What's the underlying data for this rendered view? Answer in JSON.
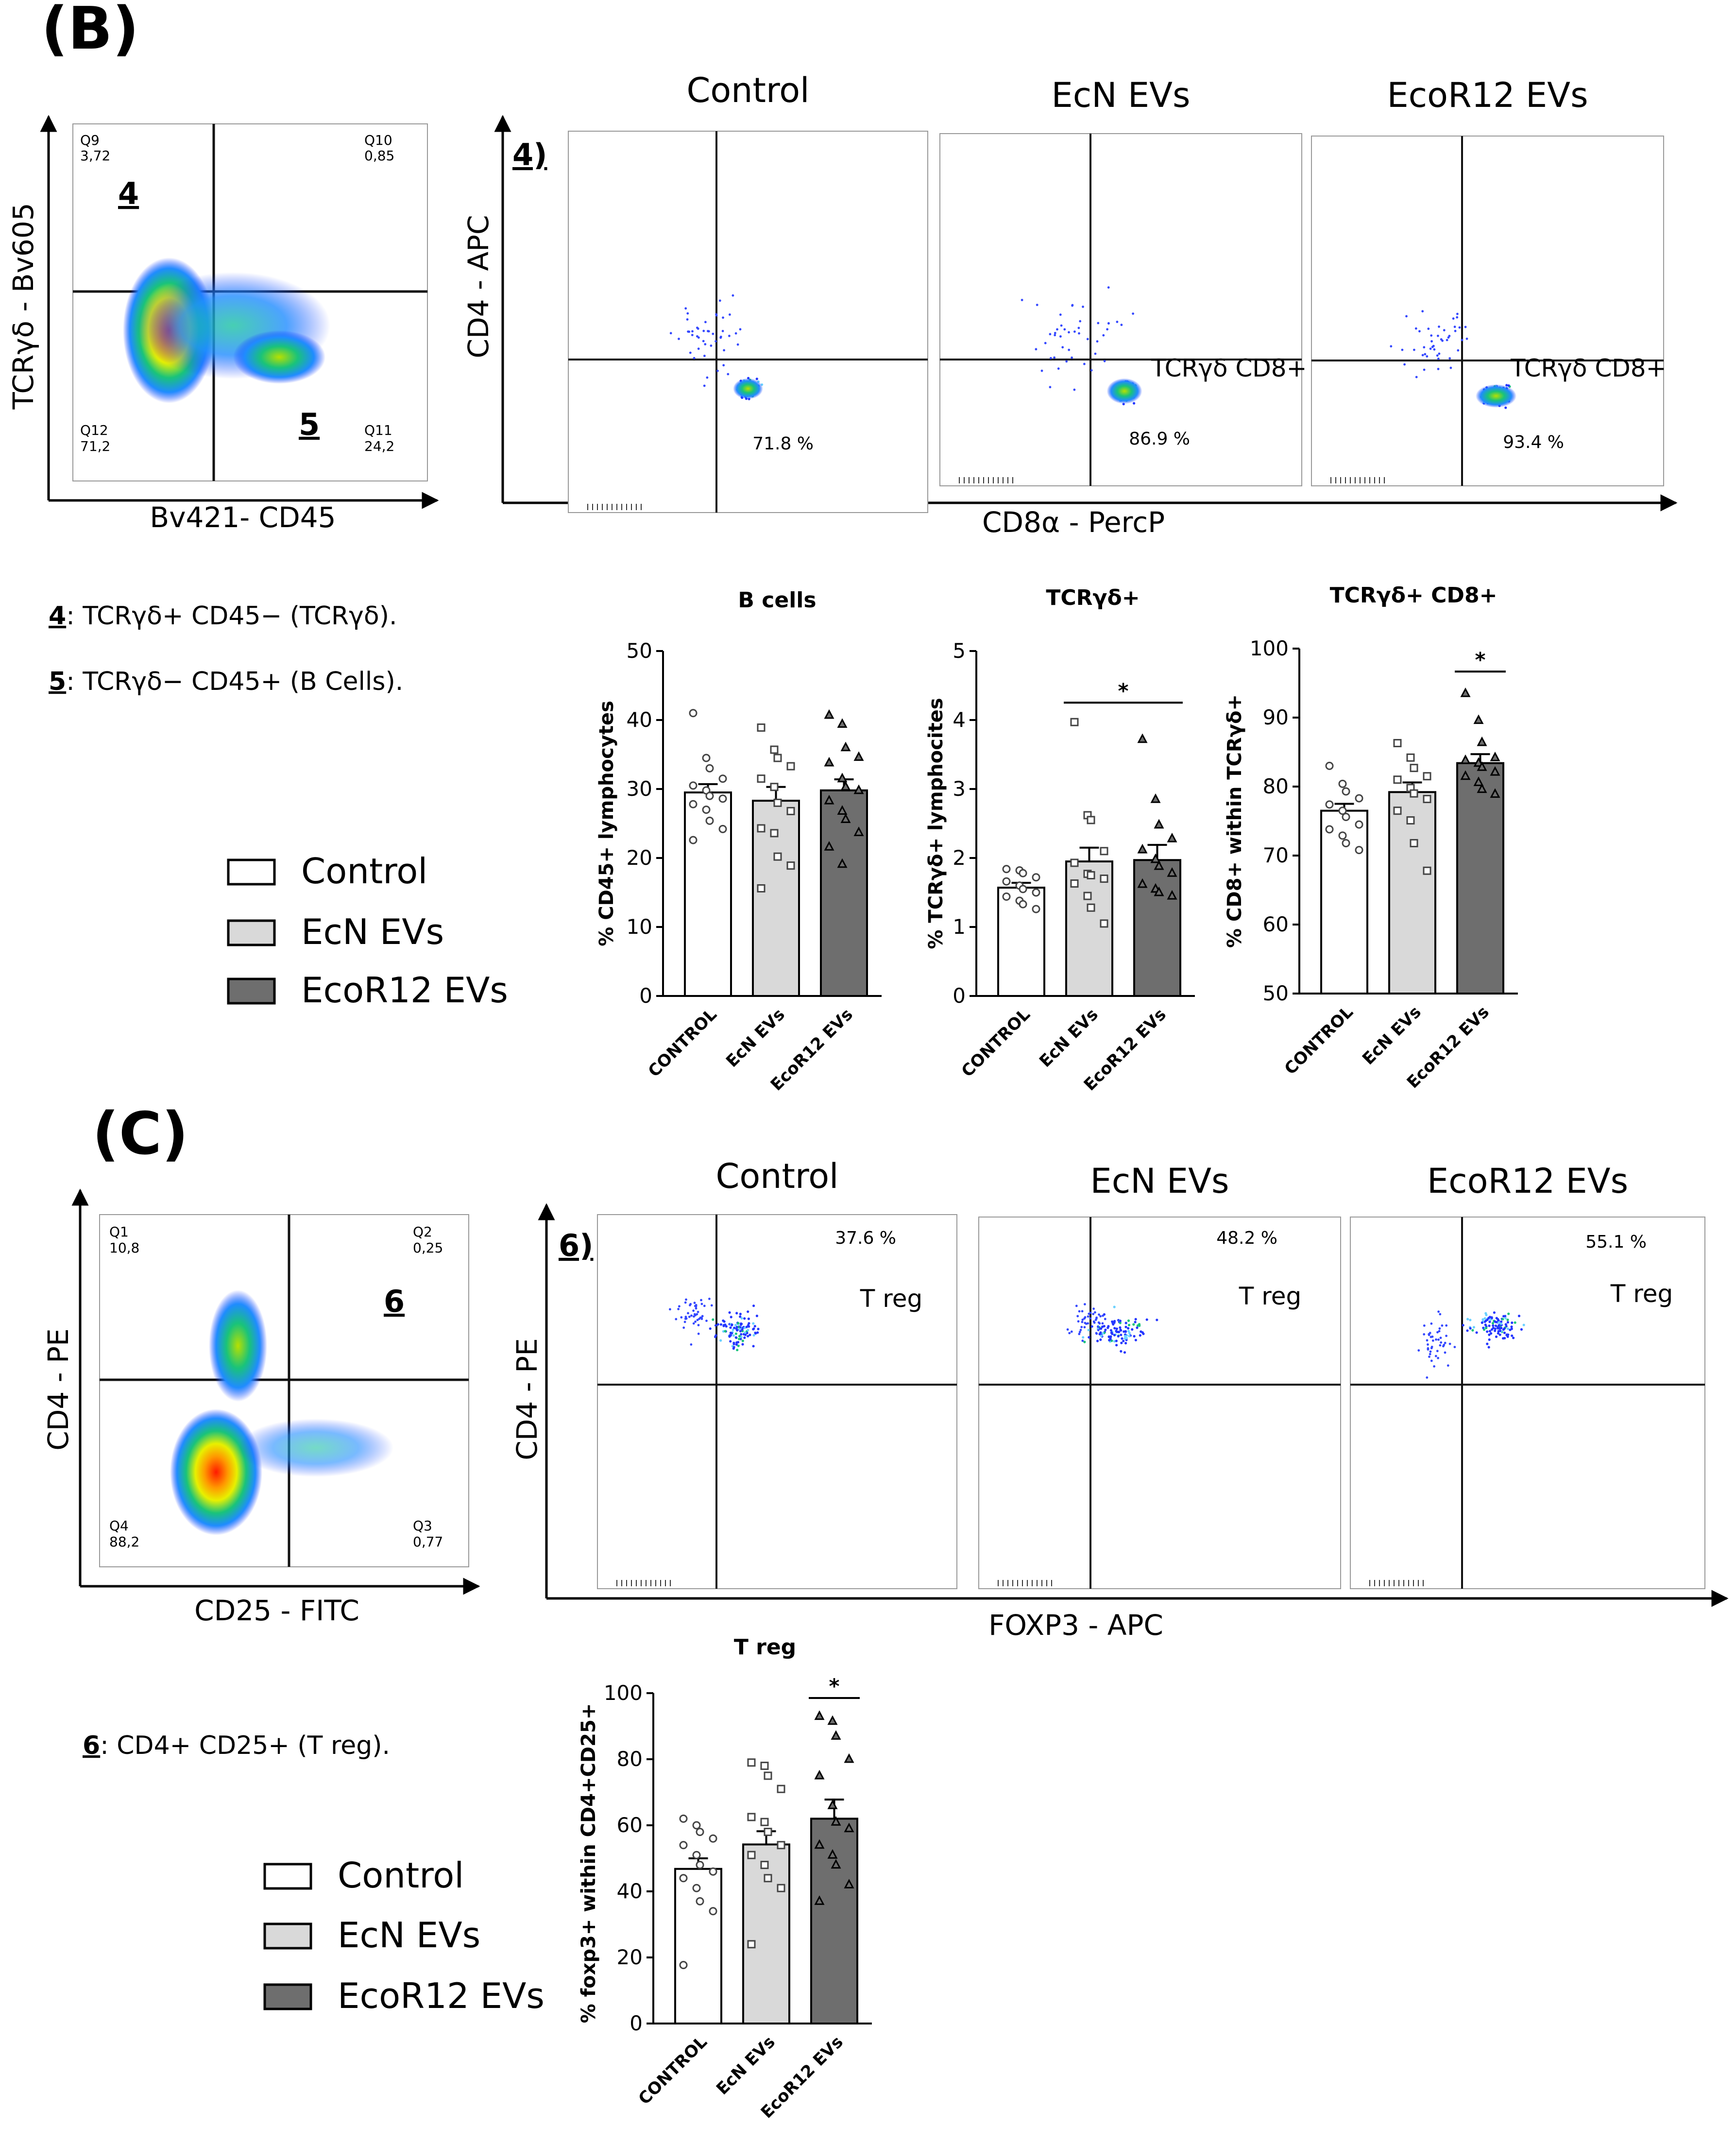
{
  "panelB": {
    "label": "(B)",
    "gate": {
      "y_label": "TCRγδ - Bv605",
      "x_label": "Bv421- CD45",
      "quadrants": {
        "tl": {
          "id": "Q9",
          "value": "3,72"
        },
        "tr": {
          "id": "Q10",
          "value": "0,85"
        },
        "bl": {
          "id": "Q12",
          "value": "71,2"
        },
        "br": {
          "id": "Q11",
          "value": "24,2"
        }
      },
      "gate_a": "4",
      "gate_b": "5"
    },
    "row_tag": "4)",
    "y_label": "CD4 - APC",
    "x_label": "CD8α - PercP",
    "plots": [
      {
        "title": "Control",
        "percent": "71.8 %",
        "label": ""
      },
      {
        "title": "EcN EVs",
        "percent": "86.9 %",
        "label": "TCRγδ CD8+"
      },
      {
        "title": "EcoR12 EVs",
        "percent": "93.4 %",
        "label": "TCRγδ CD8+"
      }
    ],
    "notes": [
      {
        "num": "4",
        "text": ": TCRγδ+ CD45− (TCRγδ)."
      },
      {
        "num": "5",
        "text": ": TCRγδ− CD45+ (B Cells)."
      }
    ]
  },
  "panelC": {
    "label": "(C)",
    "gate": {
      "y_label": "CD4 - PE",
      "x_label": "CD25 - FITC",
      "quadrants": {
        "tl": {
          "id": "Q1",
          "value": "10,8"
        },
        "tr": {
          "id": "Q2",
          "value": "0,25"
        },
        "bl": {
          "id": "Q4",
          "value": "88,2"
        },
        "br": {
          "id": "Q3",
          "value": "0,77"
        }
      },
      "gate_a": "6"
    },
    "row_tag": "6)",
    "y_label": "CD4 - PE",
    "x_label": "FOXP3 - APC",
    "plots": [
      {
        "title": "Control",
        "percent": "37.6 %",
        "label": "T reg"
      },
      {
        "title": "EcN EVs",
        "percent": "48.2 %",
        "label": "T reg"
      },
      {
        "title": "EcoR12 EVs",
        "percent": "55.1 %",
        "label": "T reg"
      }
    ],
    "notes": [
      {
        "num": "6",
        "text": ": CD4+ CD25+ (T reg)."
      }
    ]
  },
  "legend": {
    "items": [
      {
        "label": "Control",
        "color": "#ffffff"
      },
      {
        "label": "EcN EVs",
        "color": "#d9d9d9"
      },
      {
        "label": "EcoR12 EVs",
        "color": "#6e6e6e"
      }
    ]
  },
  "chart_data": [
    {
      "type": "bar",
      "title": "B cells",
      "ylabel": "% CD45+ lymphocytes",
      "ylim": [
        0,
        50
      ],
      "yticks": [
        0,
        10,
        20,
        30,
        40,
        50
      ],
      "categories": [
        "CONTROL",
        "EcN EVs",
        "EcoR12 EVs"
      ],
      "values": [
        29.5,
        28.3,
        29.8
      ],
      "errors": [
        1.2,
        2.0,
        1.6
      ],
      "points": [
        [
          41,
          34.5,
          33,
          31.5,
          30.5,
          29.8,
          29,
          28.6,
          27.8,
          27,
          25.4,
          24.2,
          22.6
        ],
        [
          38.9,
          35.7,
          34.5,
          33.3,
          31.5,
          30.3,
          28,
          26.8,
          24.3,
          23.6,
          20.2,
          18.9,
          15.6
        ],
        [
          40.7,
          39.4,
          36,
          34.6,
          33.8,
          31.5,
          30.3,
          29.8,
          28.3,
          26.8,
          25.6,
          23.7,
          21.6,
          19.1
        ]
      ],
      "significance": []
    },
    {
      "type": "bar",
      "title": "TCRγδ+",
      "ylabel": "% TCRγδ+ lymphocites",
      "ylim": [
        0,
        5
      ],
      "yticks": [
        0,
        1,
        2,
        3,
        4,
        5
      ],
      "categories": [
        "CONTROL",
        "EcN EVs",
        "EcoR12 EVs"
      ],
      "values": [
        1.57,
        1.95,
        1.97
      ],
      "errors": [
        0.07,
        0.2,
        0.22
      ],
      "points": [
        [
          1.84,
          1.82,
          1.78,
          1.72,
          1.66,
          1.6,
          1.55,
          1.5,
          1.44,
          1.38,
          1.33,
          1.26
        ],
        [
          3.97,
          2.62,
          2.55,
          2.1,
          1.93,
          1.77,
          1.75,
          1.7,
          1.63,
          1.45,
          1.28,
          1.05
        ],
        [
          3.72,
          2.85,
          2.48,
          2.28,
          2.12,
          1.98,
          1.88,
          1.78,
          1.62,
          1.55,
          1.5,
          1.45
        ]
      ],
      "significance": [
        {
          "from": 1,
          "to": 2,
          "label": "*"
        }
      ]
    },
    {
      "type": "bar",
      "title": "TCRγδ+ CD8+",
      "ylabel": "% CD8+ within TCRγδ+",
      "ylim": [
        50,
        100
      ],
      "yticks": [
        50,
        60,
        70,
        80,
        90,
        100
      ],
      "categories": [
        "CONTROL",
        "EcN EVs",
        "EcoR12 EVs"
      ],
      "values": [
        76.5,
        79.2,
        83.4
      ],
      "errors": [
        1.0,
        1.4,
        1.3
      ],
      "points": [
        [
          83,
          80.4,
          79.3,
          78.3,
          77.4,
          76.5,
          75.6,
          74.5,
          73.8,
          72.9,
          71.8,
          70.8
        ],
        [
          86.3,
          84.2,
          82.7,
          81.5,
          81,
          79.8,
          79,
          78.2,
          76.5,
          75.1,
          71.8,
          67.8
        ],
        [
          93.5,
          89.6,
          86.4,
          84.2,
          83.8,
          83.4,
          82.8,
          82.1,
          81.5,
          80.6,
          79.6,
          78.9
        ]
      ],
      "significance": [
        {
          "from": 2,
          "to": 2,
          "label": "*"
        }
      ]
    },
    {
      "type": "bar",
      "title": "T reg",
      "ylabel": "% foxp3+ within CD4+CD25+",
      "ylim": [
        0,
        100
      ],
      "yticks": [
        0,
        20,
        40,
        60,
        80,
        100
      ],
      "categories": [
        "CONTROL",
        "EcN EVs",
        "EcoR12 EVs"
      ],
      "values": [
        46.8,
        54.2,
        62.0
      ],
      "errors": [
        3.2,
        4.0,
        5.8
      ],
      "points": [
        [
          62,
          60,
          58,
          56,
          54,
          51,
          48,
          46,
          44,
          41,
          37,
          34,
          17.7
        ],
        [
          79,
          78,
          75,
          71,
          62.5,
          61,
          58,
          54,
          51,
          48,
          44,
          41,
          24
        ],
        [
          93,
          91.5,
          87,
          80,
          75,
          66,
          61,
          59,
          54,
          51,
          48,
          42,
          37
        ]
      ],
      "significance": [
        {
          "from": 2,
          "to": 2,
          "label": "*"
        }
      ]
    }
  ]
}
